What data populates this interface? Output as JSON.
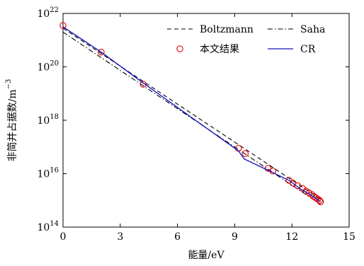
{
  "chart_data": {
    "type": "line",
    "xlabel": "能量/eV",
    "ylabel": "非简并占据数/m",
    "ylabel_exponent": "−3",
    "x_ticks": [
      0,
      3,
      6,
      9,
      12,
      15
    ],
    "y_ticks": [
      {
        "base": "10",
        "exp": "14",
        "value": 14
      },
      {
        "base": "10",
        "exp": "16",
        "value": 16
      },
      {
        "base": "10",
        "exp": "18",
        "value": 18
      },
      {
        "base": "10",
        "exp": "20",
        "value": 20
      },
      {
        "base": "10",
        "exp": "22",
        "value": 22
      }
    ],
    "xlim": [
      0,
      15
    ],
    "ylim_log10": [
      14,
      22
    ],
    "y_scale": "log",
    "grid": false,
    "legend_placement": "top-right",
    "colors": {
      "boltzmann": "#000000",
      "saha": "#000000",
      "results": "#e00000",
      "cr": "#1010c0"
    },
    "series": [
      {
        "name": "Boltzmann",
        "style": "dashed",
        "points": [
          [
            0,
            21.45
          ],
          [
            13.5,
            15.05
          ]
        ]
      },
      {
        "name": "Saha",
        "style": "dashdot",
        "points": [
          [
            0,
            21.3
          ],
          [
            13.5,
            14.85
          ]
        ]
      },
      {
        "name": "本文结果",
        "style": "circles",
        "points": [
          [
            0,
            21.55
          ],
          [
            2.0,
            20.55
          ],
          [
            4.2,
            19.35
          ],
          [
            9.2,
            16.95
          ],
          [
            9.55,
            16.75
          ],
          [
            10.75,
            16.2
          ],
          [
            11.0,
            16.1
          ],
          [
            11.85,
            15.75
          ],
          [
            12.05,
            15.65
          ],
          [
            12.3,
            15.55
          ],
          [
            12.55,
            15.45
          ],
          [
            12.75,
            15.35
          ],
          [
            12.9,
            15.28
          ],
          [
            13.05,
            15.22
          ],
          [
            13.15,
            15.15
          ],
          [
            13.25,
            15.1
          ],
          [
            13.35,
            15.05
          ],
          [
            13.45,
            15.0
          ],
          [
            13.5,
            14.95
          ]
        ]
      },
      {
        "name": "CR",
        "style": "solid",
        "points": [
          [
            0,
            21.5
          ],
          [
            2.0,
            20.55
          ],
          [
            4.2,
            19.4
          ],
          [
            9.2,
            16.85
          ],
          [
            9.5,
            16.55
          ],
          [
            11.85,
            15.75
          ],
          [
            12.5,
            15.4
          ],
          [
            13.0,
            15.2
          ],
          [
            13.5,
            14.95
          ]
        ]
      }
    ]
  }
}
